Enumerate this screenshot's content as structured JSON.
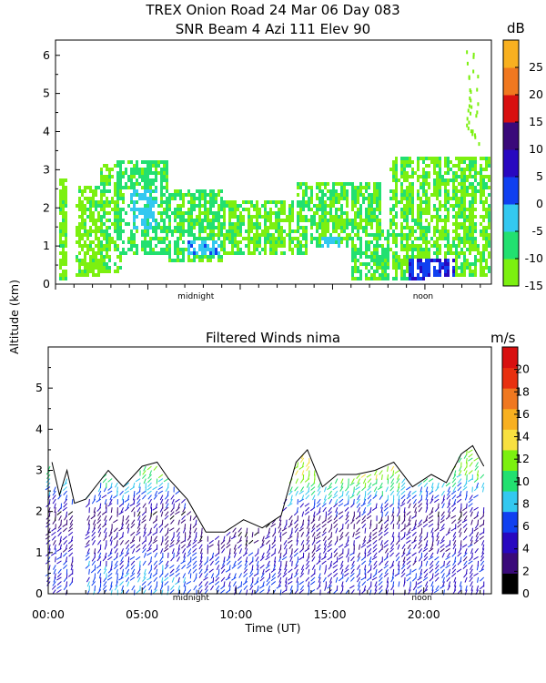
{
  "header": {
    "title": "TREX Onion Road  24 Mar 06 Day 083",
    "subtitle": "SNR Beam 4 Azi 111 Elev 90"
  },
  "shared_ylabel": "Altitude (km)",
  "chart_data": [
    {
      "type": "heatmap",
      "name": "snr",
      "title": "SNR Beam 4 Azi 111 Elev 90",
      "xlabel": "",
      "ylabel": "Altitude (km)",
      "xlim": [
        0,
        23.6
      ],
      "ylim": [
        0,
        6.4
      ],
      "y_ticks": [
        0,
        1,
        2,
        3,
        4,
        5,
        6
      ],
      "x_markers": [
        {
          "at": 7.6,
          "label": "midnight"
        },
        {
          "at": 19.9,
          "label": "noon"
        }
      ],
      "colorbar": {
        "unit": "dB",
        "min": -15,
        "max": 30,
        "ticks": [
          -15,
          -10,
          -5,
          0,
          5,
          10,
          15,
          20,
          25
        ],
        "colors": [
          "#7cf010",
          "#22e070",
          "#33c8f0",
          "#1040f0",
          "#2808c0",
          "#3a0a7a",
          "#d81010",
          "#f07820",
          "#f8b020"
        ]
      },
      "regions": [
        {
          "x": [
            0.1,
            0.6
          ],
          "y": [
            0.1,
            2.8
          ],
          "level": -12
        },
        {
          "x": [
            1.0,
            2.3
          ],
          "y": [
            0.2,
            2.6
          ],
          "level": -12
        },
        {
          "x": [
            2.3,
            3.5
          ],
          "y": [
            0.3,
            3.2
          ],
          "level": -11
        },
        {
          "x": [
            3.3,
            6.0
          ],
          "y": [
            0.8,
            3.3
          ],
          "level": -8
        },
        {
          "x": [
            6.0,
            9.0
          ],
          "y": [
            0.6,
            2.5
          ],
          "level": -9
        },
        {
          "x": [
            9.0,
            13.5
          ],
          "y": [
            0.8,
            2.2
          ],
          "level": -11
        },
        {
          "x": [
            13.0,
            17.5
          ],
          "y": [
            1.0,
            2.7
          ],
          "level": -10
        },
        {
          "x": [
            16.0,
            20.0
          ],
          "y": [
            0.1,
            1.5
          ],
          "level": -9
        },
        {
          "x": [
            18.0,
            23.5
          ],
          "y": [
            0.2,
            3.4
          ],
          "level": -11
        }
      ],
      "cores": [
        {
          "x": [
            4.0,
            5.5
          ],
          "y": [
            1.5,
            2.5
          ],
          "level": -3
        },
        {
          "x": [
            7.0,
            8.8
          ],
          "y": [
            0.8,
            1.2
          ],
          "level": -2
        },
        {
          "x": [
            14.3,
            15.3
          ],
          "y": [
            1.0,
            1.3
          ],
          "level": -3
        },
        {
          "x": [
            19.0,
            21.5
          ],
          "y": [
            0.1,
            0.7
          ],
          "level": 4
        }
      ]
    },
    {
      "type": "scatter",
      "name": "winds",
      "title": "Filtered Winds nima",
      "xlabel": "Time (UT)",
      "ylabel": "Altitude (km)",
      "xlim": [
        0,
        23.6
      ],
      "ylim": [
        0,
        6
      ],
      "x_ticks": [
        {
          "at": 0,
          "label": "00:00"
        },
        {
          "at": 5,
          "label": "05:00"
        },
        {
          "at": 10,
          "label": "10:00"
        },
        {
          "at": 15,
          "label": "15:00"
        },
        {
          "at": 20,
          "label": "20:00"
        }
      ],
      "y_ticks": [
        0,
        1,
        2,
        3,
        4,
        5
      ],
      "x_markers": [
        {
          "at": 7.6,
          "label": "midnight"
        },
        {
          "at": 19.9,
          "label": "noon"
        }
      ],
      "colorbar": {
        "unit": "m/s",
        "min": 0,
        "max": 22,
        "ticks": [
          0,
          2,
          4,
          6,
          8,
          10,
          12,
          14,
          16,
          18,
          20
        ],
        "colors": [
          "#000000",
          "#3a0a7a",
          "#2808c0",
          "#1040f0",
          "#33c8f0",
          "#22e070",
          "#7cf010",
          "#f8e040",
          "#f8b020",
          "#f07820",
          "#e83010",
          "#d81010"
        ]
      },
      "top_boundary": [
        [
          0.2,
          3.2
        ],
        [
          0.6,
          2.4
        ],
        [
          1.0,
          3.0
        ],
        [
          1.4,
          2.2
        ],
        [
          2.0,
          2.3
        ],
        [
          3.2,
          3.0
        ],
        [
          4.0,
          2.6
        ],
        [
          5.0,
          3.1
        ],
        [
          5.8,
          3.2
        ],
        [
          6.4,
          2.8
        ],
        [
          7.4,
          2.3
        ],
        [
          8.4,
          1.5
        ],
        [
          9.4,
          1.5
        ],
        [
          10.4,
          1.8
        ],
        [
          11.4,
          1.6
        ],
        [
          12.4,
          1.9
        ],
        [
          13.2,
          3.2
        ],
        [
          13.8,
          3.5
        ],
        [
          14.6,
          2.6
        ],
        [
          15.4,
          2.9
        ],
        [
          16.4,
          2.9
        ],
        [
          17.4,
          3.0
        ],
        [
          18.4,
          3.2
        ],
        [
          19.4,
          2.6
        ],
        [
          20.4,
          2.9
        ],
        [
          21.2,
          2.7
        ],
        [
          22.0,
          3.4
        ],
        [
          22.6,
          3.6
        ],
        [
          23.2,
          3.1
        ]
      ],
      "speed_profile": [
        {
          "z": 0.2,
          "speed": 6
        },
        {
          "z": 1.0,
          "speed": 5
        },
        {
          "z": 2.0,
          "speed": 3
        },
        {
          "z": 3.0,
          "speed": 12
        }
      ]
    }
  ]
}
